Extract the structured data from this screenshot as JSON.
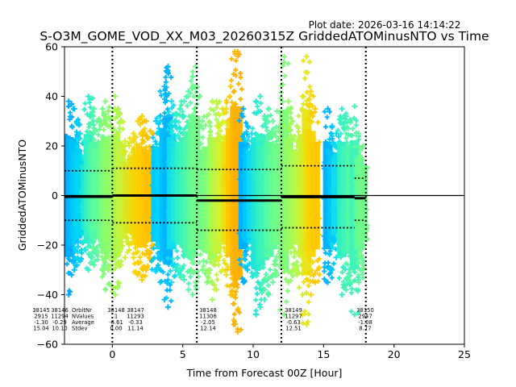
{
  "plot_date": "Plot date: 2026-03-16 14:14:22",
  "chart_data": {
    "type": "scatter",
    "title": "S-O3M_GOME_VOD_XX_M03_20260315Z GriddedATOMinusNTO vs Time",
    "xlabel": "Time from Forecast 00Z [Hour]",
    "ylabel": "GriddedATOMinusNTO",
    "xlim": [
      -3.4,
      25
    ],
    "ylim": [
      -60,
      60
    ],
    "xticks": [
      0,
      5,
      10,
      15,
      20,
      25
    ],
    "yticks": [
      -60,
      -40,
      -20,
      0,
      20,
      40,
      60
    ],
    "zero_line": 0,
    "forecast_boundaries": [
      0,
      6,
      12,
      18
    ],
    "stat_row_labels": [
      "OrbitNr",
      "NValues",
      "Average",
      "Stdev"
    ],
    "orbit_stats": [
      {
        "orbit": "38145",
        "nvalues": "2915",
        "average": "-1.30",
        "stdev": "15.04"
      },
      {
        "orbit": "38146",
        "nvalues": "11294",
        "average": "-0.29",
        "stdev": "10.10"
      },
      {
        "orbit": "38148",
        "nvalues": "1",
        "average": "-6.61",
        "stdev": "0.00"
      },
      {
        "orbit": "38147",
        "nvalues": "11293",
        "average": "-0.33",
        "stdev": "11.14"
      },
      {
        "orbit": "38148",
        "nvalues": "11306",
        "average": "-2.05",
        "stdev": "12.14"
      },
      {
        "orbit": "38149",
        "nvalues": "11297",
        "average": "-0.63",
        "stdev": "12.51"
      },
      {
        "orbit": "38150",
        "nvalues": "2947",
        "average": "-1.08",
        "stdev": "8.77"
      }
    ],
    "window_stats": [
      {
        "x_range": [
          -3.4,
          0
        ],
        "mean": -0.5,
        "stdev_upper": 10,
        "stdev_lower": -10
      },
      {
        "x_range": [
          0,
          6
        ],
        "mean": 0,
        "stdev_upper": 11,
        "stdev_lower": -11
      },
      {
        "x_range": [
          6,
          12
        ],
        "mean": -2.05,
        "stdev_upper": 10.5,
        "stdev_lower": -14
      },
      {
        "x_range": [
          12,
          17.2
        ],
        "mean": -0.6,
        "stdev_upper": 12,
        "stdev_lower": -13
      },
      {
        "x_range": [
          17.2,
          18
        ],
        "mean": -1.08,
        "stdev_upper": 7,
        "stdev_lower": -10
      }
    ],
    "point_columns": [
      {
        "x": -3.1,
        "ymin": -40,
        "ymax": 38,
        "color": "#00a8ff"
      },
      {
        "x": -2.9,
        "ymin": -32,
        "ymax": 37,
        "color": "#00b4ff"
      },
      {
        "x": -2.7,
        "ymin": -30,
        "ymax": 35,
        "color": "#00c0ff"
      },
      {
        "x": -2.5,
        "ymin": -28,
        "ymax": 30,
        "color": "#00ccf8"
      },
      {
        "x": -2.3,
        "ymin": -26,
        "ymax": 25,
        "color": "#00d8f0"
      },
      {
        "x": -1.9,
        "ymin": -22,
        "ymax": 18,
        "color": "#20e8d8"
      },
      {
        "x": -1.7,
        "ymin": -30,
        "ymax": 40,
        "color": "#30f0c8"
      },
      {
        "x": -1.5,
        "ymin": -25,
        "ymax": 32,
        "color": "#40f4b8"
      },
      {
        "x": -1.3,
        "ymin": -28,
        "ymax": 35,
        "color": "#50f8a8"
      },
      {
        "x": -1.1,
        "ymin": -22,
        "ymax": 30,
        "color": "#60fa98"
      },
      {
        "x": -0.7,
        "ymin": -30,
        "ymax": 35,
        "color": "#70fc88"
      },
      {
        "x": -0.5,
        "ymin": -38,
        "ymax": 38,
        "color": "#80fc78"
      },
      {
        "x": -0.3,
        "ymin": -30,
        "ymax": 34,
        "color": "#90fc68"
      },
      {
        "x": 0.2,
        "ymin": -40,
        "ymax": 40,
        "color": "#a0fc58"
      },
      {
        "x": 0.4,
        "ymin": -35,
        "ymax": 35,
        "color": "#b0f848"
      },
      {
        "x": 0.6,
        "ymin": -28,
        "ymax": 30,
        "color": "#c0f440"
      },
      {
        "x": 0.9,
        "ymin": -25,
        "ymax": 22,
        "color": "#d0ee30"
      },
      {
        "x": 1.2,
        "ymin": -22,
        "ymax": 20,
        "color": "#e0e420"
      },
      {
        "x": 1.5,
        "ymin": -25,
        "ymax": 25,
        "color": "#eedc10"
      },
      {
        "x": 1.8,
        "ymin": -32,
        "ymax": 30,
        "color": "#f8d400"
      },
      {
        "x": 2.1,
        "ymin": -34,
        "ymax": 32,
        "color": "#ffcc00"
      },
      {
        "x": 2.4,
        "ymin": -30,
        "ymax": 30,
        "color": "#ffc400"
      },
      {
        "x": 2.7,
        "ymin": -26,
        "ymax": 26,
        "color": "#ffc000"
      },
      {
        "x": 3.1,
        "ymin": -30,
        "ymax": 30,
        "color": "#00c8ff"
      },
      {
        "x": 3.4,
        "ymin": -35,
        "ymax": 32,
        "color": "#00d4f8"
      },
      {
        "x": 3.7,
        "ymin": -42,
        "ymax": 44,
        "color": "#00c0ff"
      },
      {
        "x": 3.95,
        "ymin": -45,
        "ymax": 52,
        "color": "#00b4ff"
      },
      {
        "x": 4.2,
        "ymin": -35,
        "ymax": 38,
        "color": "#10dcf0"
      },
      {
        "x": 4.5,
        "ymin": -30,
        "ymax": 30,
        "color": "#20e8d8"
      },
      {
        "x": 4.8,
        "ymin": -32,
        "ymax": 35,
        "color": "#30f0c8"
      },
      {
        "x": 5.1,
        "ymin": -34,
        "ymax": 38,
        "color": "#40f4b8"
      },
      {
        "x": 5.4,
        "ymin": -38,
        "ymax": 42,
        "color": "#50f8a8"
      },
      {
        "x": 5.7,
        "ymin": -40,
        "ymax": 48,
        "color": "#60fa98"
      },
      {
        "x": 5.9,
        "ymin": -35,
        "ymax": 52,
        "color": "#70fc88"
      },
      {
        "x": 6.4,
        "ymin": -30,
        "ymax": 30,
        "color": "#70fc88"
      },
      {
        "x": 6.7,
        "ymin": -35,
        "ymax": 32,
        "color": "#80fc78"
      },
      {
        "x": 7.1,
        "ymin": -42,
        "ymax": 38,
        "color": "#a0fc58"
      },
      {
        "x": 7.4,
        "ymin": -38,
        "ymax": 38,
        "color": "#c0f440"
      },
      {
        "x": 7.8,
        "ymin": -30,
        "ymax": 35,
        "color": "#d8f028"
      },
      {
        "x": 8.1,
        "ymin": -32,
        "ymax": 35,
        "color": "#f0dc10"
      },
      {
        "x": 8.4,
        "ymin": -40,
        "ymax": 44,
        "color": "#ffc800"
      },
      {
        "x": 8.7,
        "ymin": -52,
        "ymax": 58,
        "color": "#ffb800"
      },
      {
        "x": 8.9,
        "ymin": -55,
        "ymax": 58,
        "color": "#ffb000"
      },
      {
        "x": 9.3,
        "ymin": -35,
        "ymax": 35,
        "color": "#00b0ff"
      },
      {
        "x": 9.6,
        "ymin": -30,
        "ymax": 28,
        "color": "#00c8ff"
      },
      {
        "x": 9.9,
        "ymin": -28,
        "ymax": 25,
        "color": "#10dcf0"
      },
      {
        "x": 10.2,
        "ymin": -48,
        "ymax": 38,
        "color": "#20e8d8"
      },
      {
        "x": 10.5,
        "ymin": -45,
        "ymax": 40,
        "color": "#30f0c8"
      },
      {
        "x": 10.8,
        "ymin": -42,
        "ymax": 32,
        "color": "#40f4b8"
      },
      {
        "x": 11.1,
        "ymin": -40,
        "ymax": 35,
        "color": "#50f8a8"
      },
      {
        "x": 11.4,
        "ymin": -35,
        "ymax": 30,
        "color": "#60fa98"
      },
      {
        "x": 11.7,
        "ymin": -32,
        "ymax": 34,
        "color": "#70fc88"
      },
      {
        "x": 12.2,
        "ymin": -48,
        "ymax": 56,
        "color": "#80fc78"
      },
      {
        "x": 12.5,
        "ymin": -35,
        "ymax": 38,
        "color": "#90fc68"
      },
      {
        "x": 12.8,
        "ymin": -30,
        "ymax": 30,
        "color": "#a0fc58"
      },
      {
        "x": 13.1,
        "ymin": -32,
        "ymax": 28,
        "color": "#b8f848"
      },
      {
        "x": 13.5,
        "ymin": -40,
        "ymax": 40,
        "color": "#d0ee30"
      },
      {
        "x": 13.8,
        "ymin": -52,
        "ymax": 56,
        "color": "#e8e418"
      },
      {
        "x": 14.1,
        "ymin": -40,
        "ymax": 42,
        "color": "#f8d400"
      },
      {
        "x": 14.4,
        "ymin": -35,
        "ymax": 35,
        "color": "#ffc800"
      },
      {
        "x": 15.3,
        "ymin": -35,
        "ymax": 35,
        "color": "#00b4ff"
      },
      {
        "x": 15.6,
        "ymin": -30,
        "ymax": 28,
        "color": "#00c8ff"
      },
      {
        "x": 15.9,
        "ymin": -25,
        "ymax": 25,
        "color": "#10dcf0"
      },
      {
        "x": 16.3,
        "ymin": -40,
        "ymax": 35,
        "color": "#30f0c8"
      },
      {
        "x": 16.6,
        "ymin": -38,
        "ymax": 32,
        "color": "#40f4b8"
      },
      {
        "x": 16.9,
        "ymin": -35,
        "ymax": 30,
        "color": "#50f8a8"
      },
      {
        "x": 17.2,
        "ymin": -48,
        "ymax": 36,
        "color": "#40f4b8"
      },
      {
        "x": 17.5,
        "ymin": -35,
        "ymax": 25,
        "color": "#60fa98"
      },
      {
        "x": 17.8,
        "ymin": -30,
        "ymax": 20,
        "color": "#70fc88"
      }
    ]
  }
}
